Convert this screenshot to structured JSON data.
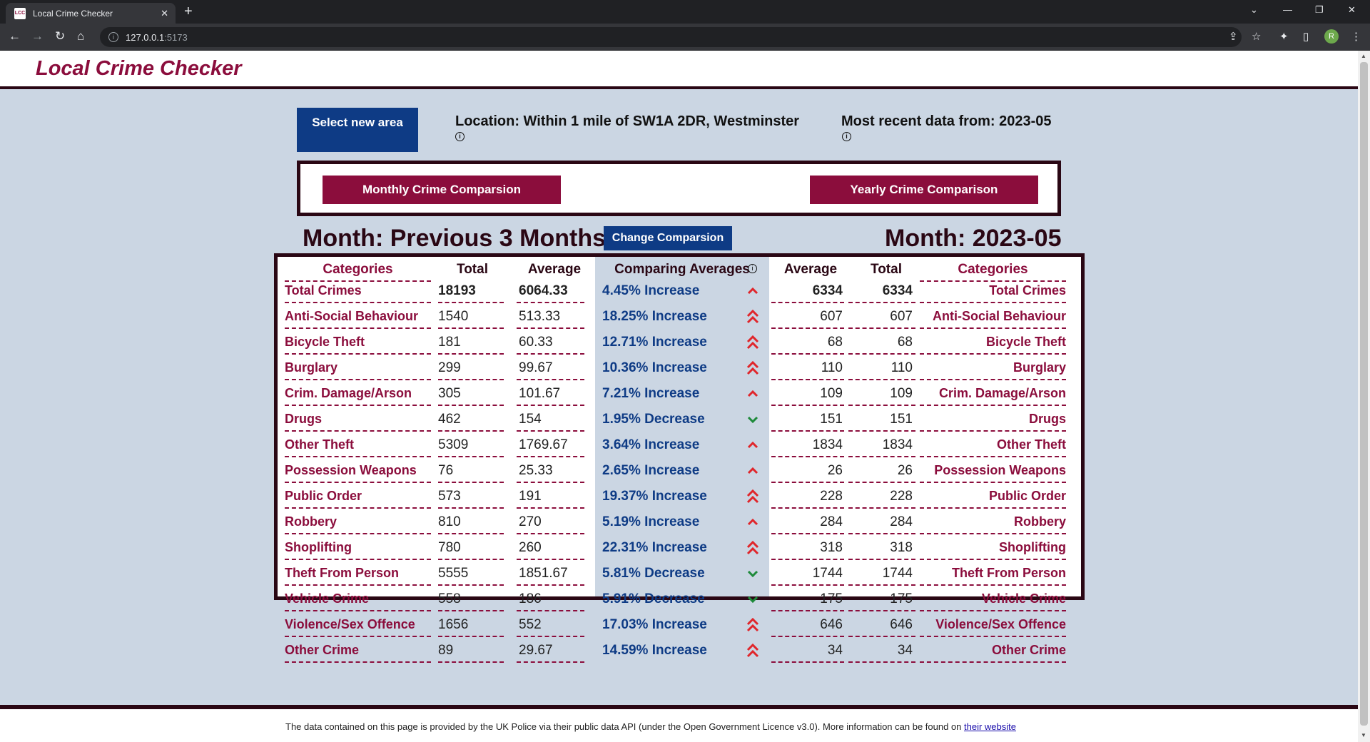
{
  "browser": {
    "tab_title": "Local Crime Checker",
    "favicon_text": "LCC",
    "url_host": "127.0.0.1",
    "url_port": ":5173",
    "profile_initial": "R"
  },
  "app": {
    "title": "Local Crime Checker",
    "select_area_label": "Select new area",
    "location_text": "Location: Within 1 mile of SW1A 2DR, Westminster",
    "recent_data_text": "Most recent data from: 2023-05",
    "monthly_btn": "Monthly Crime Comparsion",
    "yearly_btn": "Yearly Crime Comparison",
    "month_left": "Month: Previous 3 Months",
    "change_btn": "Change Comparsion",
    "month_right": "Month: 2023-05"
  },
  "table": {
    "headers": {
      "categories_left": "Categories",
      "total_left": "Total",
      "average_left": "Average",
      "comparing": "Comparing Averages",
      "average_right": "Average",
      "total_right": "Total",
      "categories_right": "Categories"
    },
    "rows": [
      {
        "cat": "Total Crimes",
        "total_l": "18193",
        "avg_l": "6064.33",
        "cmp": "4.45% Increase",
        "dir": "up1",
        "avg_r": "6334",
        "total_r": "6334"
      },
      {
        "cat": "Anti-Social Behaviour",
        "total_l": "1540",
        "avg_l": "513.33",
        "cmp": "18.25% Increase",
        "dir": "up2",
        "avg_r": "607",
        "total_r": "607"
      },
      {
        "cat": "Bicycle Theft",
        "total_l": "181",
        "avg_l": "60.33",
        "cmp": "12.71% Increase",
        "dir": "up2",
        "avg_r": "68",
        "total_r": "68"
      },
      {
        "cat": "Burglary",
        "total_l": "299",
        "avg_l": "99.67",
        "cmp": "10.36% Increase",
        "dir": "up2",
        "avg_r": "110",
        "total_r": "110"
      },
      {
        "cat": "Crim. Damage/Arson",
        "total_l": "305",
        "avg_l": "101.67",
        "cmp": "7.21% Increase",
        "dir": "up1",
        "avg_r": "109",
        "total_r": "109"
      },
      {
        "cat": "Drugs",
        "total_l": "462",
        "avg_l": "154",
        "cmp": "1.95% Decrease",
        "dir": "down",
        "avg_r": "151",
        "total_r": "151"
      },
      {
        "cat": "Other Theft",
        "total_l": "5309",
        "avg_l": "1769.67",
        "cmp": "3.64% Increase",
        "dir": "up1",
        "avg_r": "1834",
        "total_r": "1834"
      },
      {
        "cat": "Possession Weapons",
        "total_l": "76",
        "avg_l": "25.33",
        "cmp": "2.65% Increase",
        "dir": "up1",
        "avg_r": "26",
        "total_r": "26"
      },
      {
        "cat": "Public Order",
        "total_l": "573",
        "avg_l": "191",
        "cmp": "19.37% Increase",
        "dir": "up2",
        "avg_r": "228",
        "total_r": "228"
      },
      {
        "cat": "Robbery",
        "total_l": "810",
        "avg_l": "270",
        "cmp": "5.19% Increase",
        "dir": "up1",
        "avg_r": "284",
        "total_r": "284"
      },
      {
        "cat": "Shoplifting",
        "total_l": "780",
        "avg_l": "260",
        "cmp": "22.31% Increase",
        "dir": "up2",
        "avg_r": "318",
        "total_r": "318"
      },
      {
        "cat": "Theft From Person",
        "total_l": "5555",
        "avg_l": "1851.67",
        "cmp": "5.81% Decrease",
        "dir": "down",
        "avg_r": "1744",
        "total_r": "1744"
      },
      {
        "cat": "Vehicle Crime",
        "total_l": "558",
        "avg_l": "186",
        "cmp": "5.91% Decrease",
        "dir": "down",
        "avg_r": "175",
        "total_r": "175"
      },
      {
        "cat": "Violence/Sex Offence",
        "total_l": "1656",
        "avg_l": "552",
        "cmp": "17.03% Increase",
        "dir": "up2",
        "avg_r": "646",
        "total_r": "646"
      },
      {
        "cat": "Other Crime",
        "total_l": "89",
        "avg_l": "29.67",
        "cmp": "14.59% Increase",
        "dir": "up2",
        "avg_r": "34",
        "total_r": "34"
      }
    ]
  },
  "footer": {
    "text": "The data contained on this page is provided by the UK Police via their public data API (under the Open Government Licence v3.0). More information can be found on ",
    "link": "their website"
  },
  "colors": {
    "maroon": "#8b0d3c",
    "navy": "#0e3b85",
    "page_bg": "#cbd6e3",
    "increase": "#e0262b",
    "decrease": "#1d8a3a"
  }
}
